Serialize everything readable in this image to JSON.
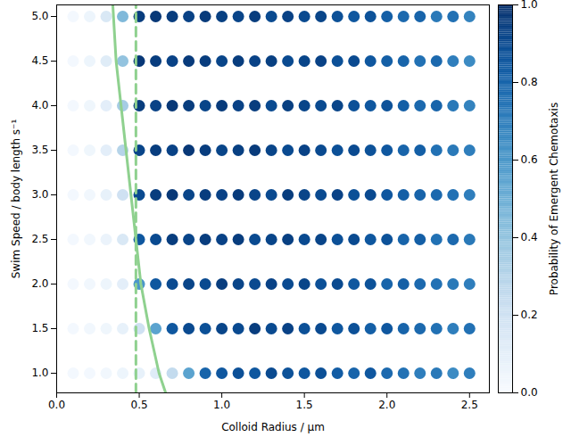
{
  "chart_data": {
    "type": "scatter",
    "x_label": "Colloid Radius / μm",
    "y_label": "Swim Speed / body length s⁻¹",
    "x": [
      0.1,
      0.2,
      0.3,
      0.4,
      0.5,
      0.6,
      0.7,
      0.8,
      0.9,
      1.0,
      1.1,
      1.2,
      1.3,
      1.4,
      1.5,
      1.6,
      1.7,
      1.8,
      1.9,
      2.0,
      2.1,
      2.2,
      2.3,
      2.4,
      2.5
    ],
    "y": [
      1.0,
      1.5,
      2.0,
      2.5,
      3.0,
      3.5,
      4.0,
      4.5,
      5.0
    ],
    "probability": [
      [
        0.02,
        0.02,
        0.03,
        0.05,
        0.08,
        0.12,
        0.25,
        0.55,
        0.8,
        0.85,
        0.88,
        0.85,
        0.9,
        0.87,
        0.85,
        0.88,
        0.83,
        0.8,
        0.85,
        0.78,
        0.75,
        0.7,
        0.72,
        0.65,
        0.7
      ],
      [
        0.02,
        0.03,
        0.04,
        0.08,
        0.2,
        0.55,
        0.85,
        0.9,
        0.88,
        0.92,
        0.9,
        0.95,
        0.9,
        0.93,
        0.88,
        0.9,
        0.85,
        0.88,
        0.82,
        0.85,
        0.8,
        0.78,
        0.75,
        0.7,
        0.75
      ],
      [
        0.02,
        0.03,
        0.05,
        0.1,
        0.6,
        0.85,
        0.9,
        0.92,
        0.9,
        0.95,
        0.92,
        0.9,
        0.93,
        0.9,
        0.92,
        0.88,
        0.9,
        0.85,
        0.87,
        0.8,
        0.82,
        0.78,
        0.75,
        0.72,
        0.7
      ],
      [
        0.02,
        0.03,
        0.06,
        0.15,
        0.85,
        0.9,
        0.95,
        0.92,
        0.95,
        0.93,
        0.95,
        0.9,
        0.92,
        0.94,
        0.9,
        0.92,
        0.88,
        0.9,
        0.85,
        0.87,
        0.8,
        0.82,
        0.75,
        0.78,
        0.72
      ],
      [
        0.02,
        0.03,
        0.08,
        0.2,
        0.9,
        0.95,
        0.97,
        0.92,
        0.95,
        0.93,
        0.96,
        0.92,
        0.9,
        0.95,
        0.92,
        0.9,
        0.93,
        0.88,
        0.9,
        0.85,
        0.82,
        0.8,
        0.78,
        0.75,
        0.7
      ],
      [
        0.02,
        0.04,
        0.1,
        0.3,
        0.92,
        0.95,
        0.93,
        0.97,
        0.95,
        0.92,
        0.94,
        0.96,
        0.92,
        0.9,
        0.93,
        0.9,
        0.88,
        0.9,
        0.87,
        0.85,
        0.8,
        0.82,
        0.75,
        0.72,
        0.7
      ],
      [
        0.02,
        0.04,
        0.1,
        0.35,
        0.95,
        0.93,
        0.97,
        0.95,
        0.92,
        0.96,
        0.93,
        0.95,
        0.9,
        0.94,
        0.92,
        0.9,
        0.92,
        0.88,
        0.85,
        0.87,
        0.82,
        0.78,
        0.8,
        0.72,
        0.68
      ],
      [
        0.02,
        0.05,
        0.12,
        0.4,
        0.97,
        0.95,
        0.93,
        0.96,
        0.95,
        0.92,
        0.95,
        0.93,
        0.94,
        0.9,
        0.92,
        0.93,
        0.88,
        0.9,
        0.85,
        0.82,
        0.8,
        0.75,
        0.78,
        0.7,
        0.65
      ],
      [
        0.02,
        0.05,
        0.15,
        0.45,
        0.95,
        0.97,
        0.95,
        0.93,
        0.96,
        0.94,
        0.92,
        0.95,
        0.9,
        0.93,
        0.9,
        0.92,
        0.88,
        0.85,
        0.87,
        0.82,
        0.78,
        0.8,
        0.72,
        0.75,
        0.68
      ]
    ],
    "lines": [
      {
        "x": [
          0.34,
          0.36,
          0.39,
          0.42,
          0.45,
          0.48,
          0.51,
          0.56,
          0.62,
          0.66
        ],
        "y": [
          5.13,
          4.5,
          4.0,
          3.5,
          3.0,
          2.5,
          2.0,
          1.5,
          1.0,
          0.78
        ],
        "color": "#8fd18f",
        "line_style": "solid"
      },
      {
        "x": [
          0.48,
          0.48
        ],
        "y": [
          0.78,
          5.13
        ],
        "color": "#8fd18f",
        "line_style": "dashed"
      }
    ],
    "xlim": [
      0,
      2.62
    ],
    "ylim": [
      0.78,
      5.13
    ],
    "xticks": [
      {
        "value": 0,
        "label": "0.0"
      },
      {
        "value": 0.5,
        "label": "0.5"
      },
      {
        "value": 1,
        "label": "1.0"
      },
      {
        "value": 1.5,
        "label": "1.5"
      },
      {
        "value": 2,
        "label": "2.0"
      },
      {
        "value": 2.5,
        "label": "2.5"
      }
    ],
    "yticks": [
      {
        "value": 1,
        "label": "1.0"
      },
      {
        "value": 1.5,
        "label": "1.5"
      },
      {
        "value": 2,
        "label": "2.0"
      },
      {
        "value": 2.5,
        "label": "2.5"
      },
      {
        "value": 3,
        "label": "3.0"
      },
      {
        "value": 3.5,
        "label": "3.5"
      },
      {
        "value": 4,
        "label": "4.0"
      },
      {
        "value": 4.5,
        "label": "4.5"
      },
      {
        "value": 5,
        "label": "5.0"
      }
    ],
    "colorbar": {
      "label": "Probability of Emergent Chemotaxis",
      "range": [
        0,
        1
      ],
      "ticks": [
        {
          "value": 0,
          "label": "0.0"
        },
        {
          "value": 0.2,
          "label": "0.2"
        },
        {
          "value": 0.4,
          "label": "0.4"
        },
        {
          "value": 0.6,
          "label": "0.6"
        },
        {
          "value": 0.8,
          "label": "0.8"
        },
        {
          "value": 1,
          "label": "1.0"
        }
      ]
    },
    "grid": false
  }
}
